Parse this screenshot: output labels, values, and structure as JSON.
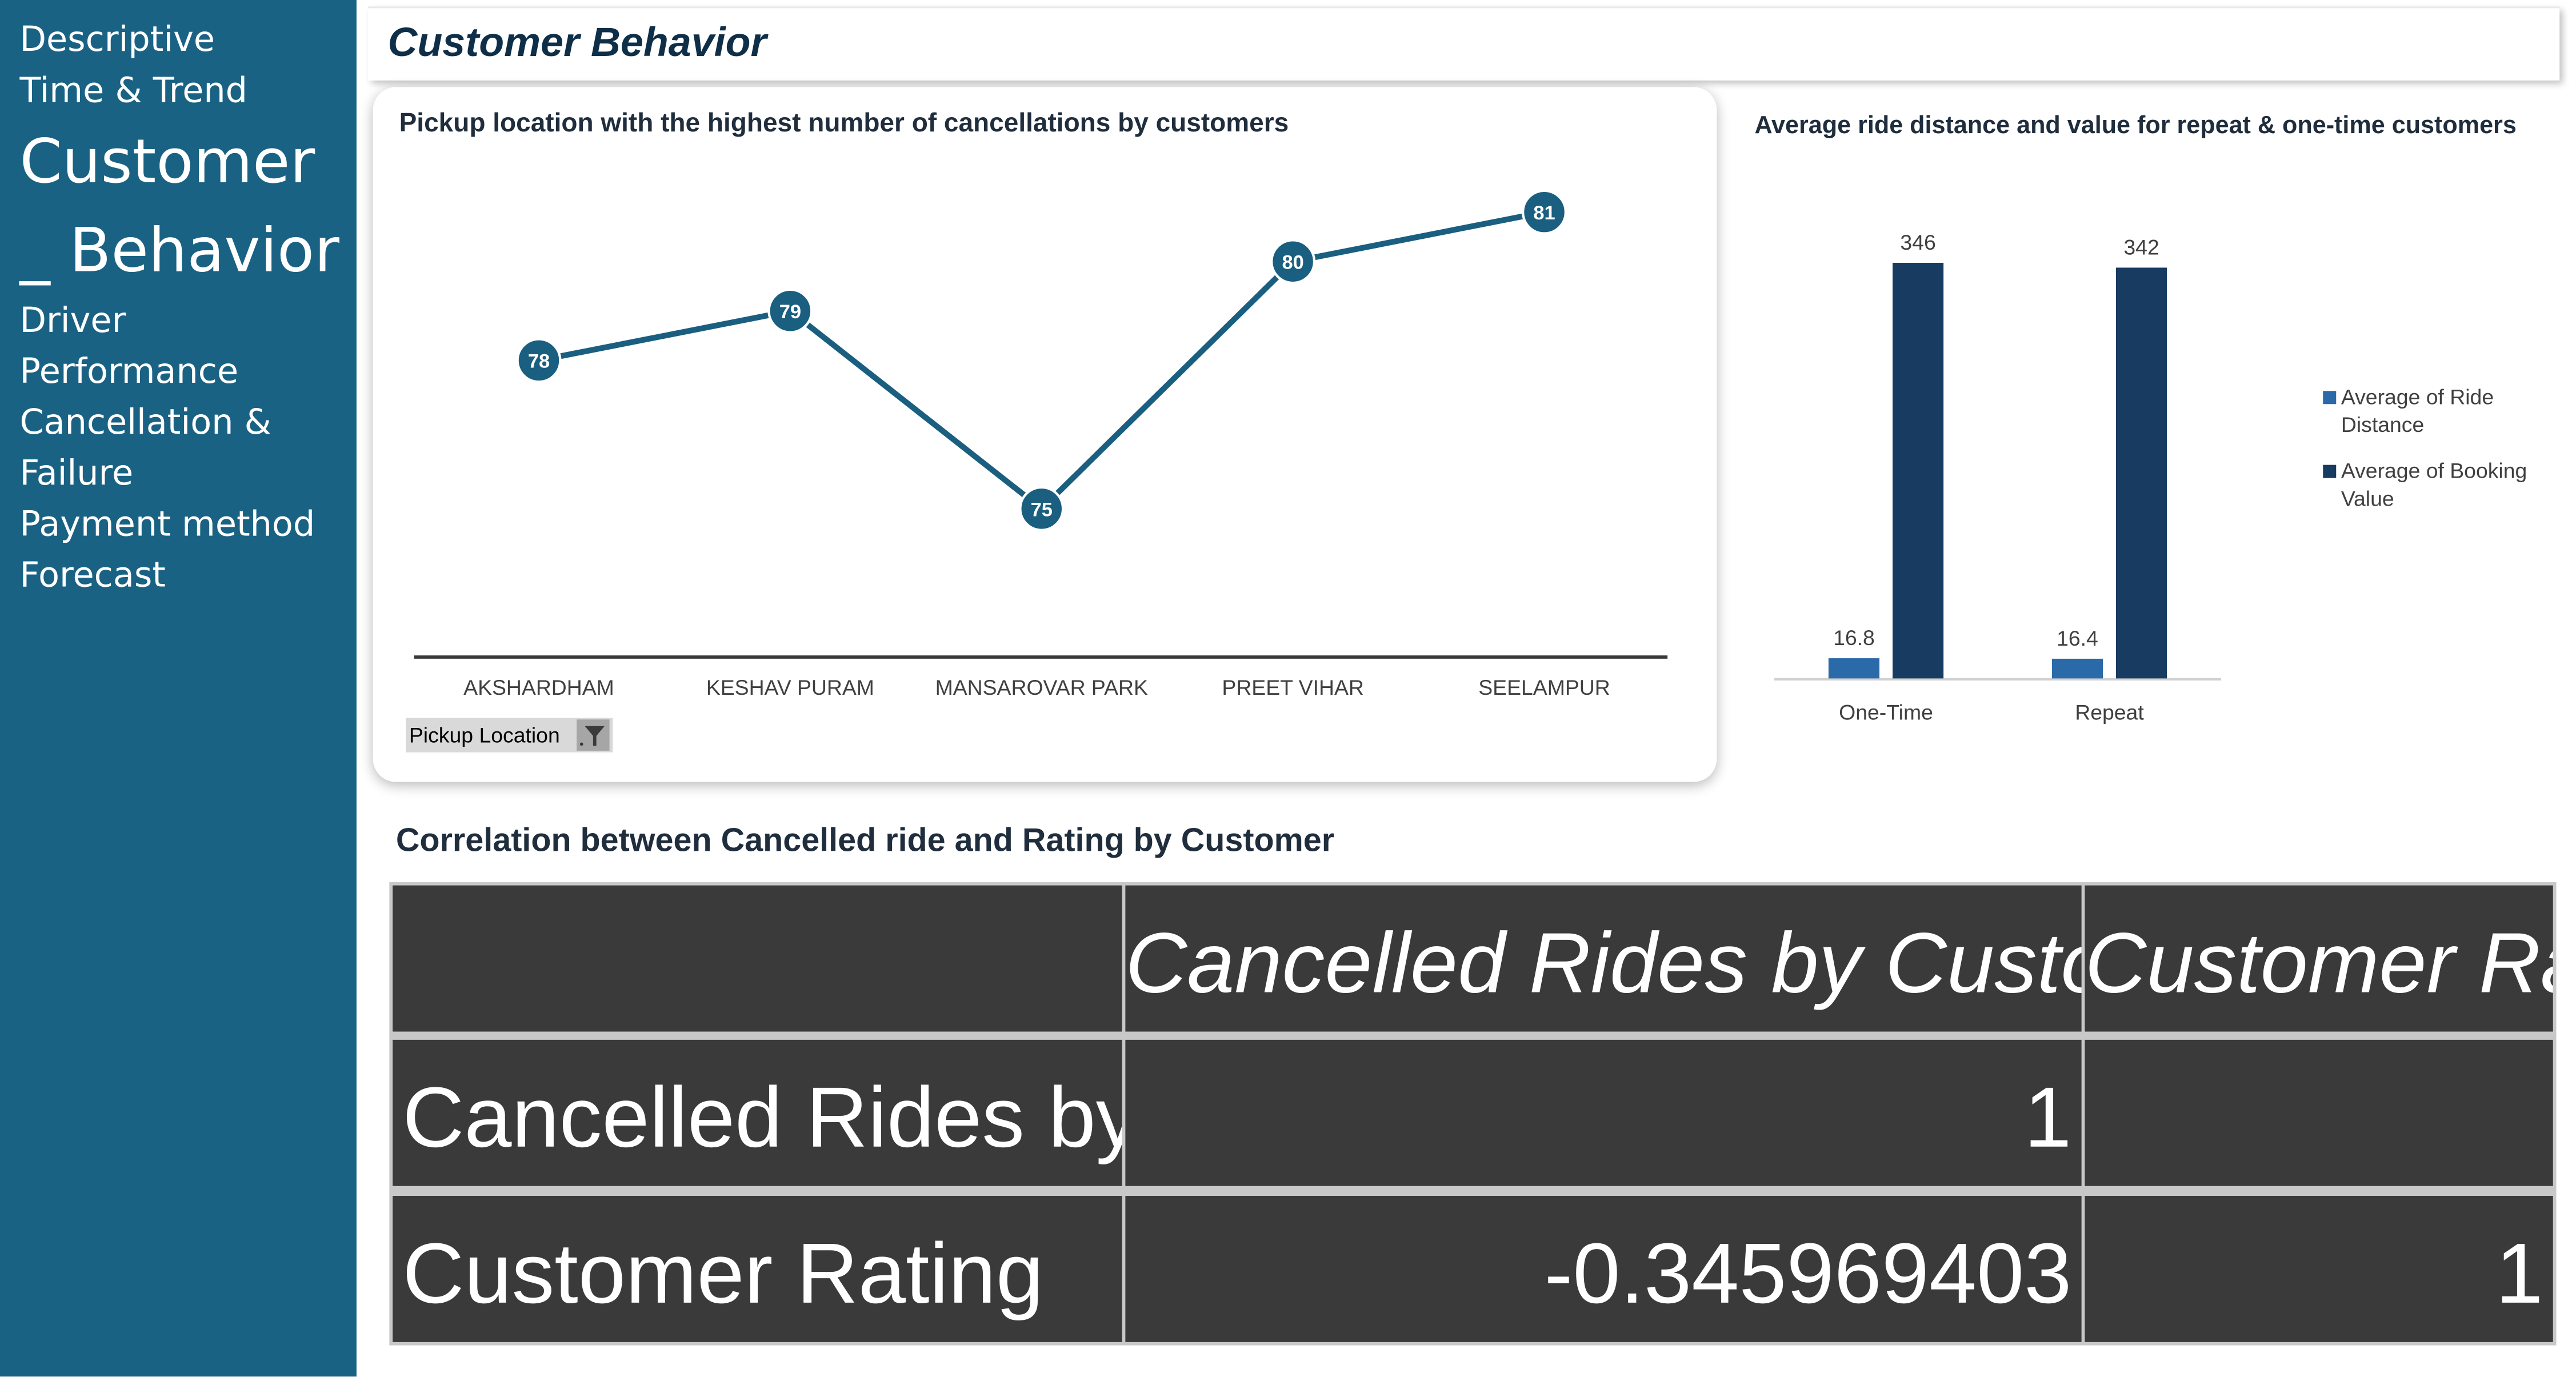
{
  "sidebar": {
    "items": [
      "Descriptive",
      "Time & Trend",
      "Customer",
      "_ Behavior",
      "Driver",
      "Performance",
      "Cancellation &",
      "Failure",
      "Payment method",
      "Forecast"
    ]
  },
  "page": {
    "title": "Customer Behavior"
  },
  "colors": {
    "sidebar": "#1a6284",
    "line": "#1a5e80",
    "dark_bar": "#173b61",
    "light_bar": "#2a6aa8",
    "table_bg": "#3a3a3a"
  },
  "filter": {
    "label": "Pickup  Location",
    "icon": "filter-icon"
  },
  "correlation": {
    "title": "Correlation between Cancelled ride and Rating by Customer",
    "columns": [
      "",
      "Cancelled Rides by Customer",
      "Customer Rating"
    ],
    "rows": [
      {
        "label": "Cancelled Rides by Customer",
        "values": [
          "1",
          ""
        ]
      },
      {
        "label": "Customer Rating",
        "values": [
          "-0.345969403",
          "1"
        ]
      }
    ]
  },
  "chart_data": [
    {
      "type": "line",
      "title": "Pickup location with the highest number of cancellations by customers",
      "categories": [
        "AKSHARDHAM",
        "KESHAV PURAM",
        "MANSAROVAR PARK",
        "PREET VIHAR",
        "SEELAMPUR"
      ],
      "series": [
        {
          "values": [
            78,
            79,
            75,
            80,
            81
          ]
        }
      ],
      "ylim": [
        72,
        82.2
      ],
      "grid": false,
      "data_labels": true
    },
    {
      "type": "bar",
      "title": "Average ride distance and value for repeat & one-time customers",
      "categories": [
        "One-Time",
        "Repeat"
      ],
      "series": [
        {
          "name": "Average of Ride Distance",
          "values": [
            16.8,
            16.4
          ]
        },
        {
          "name": "Average of Booking Value",
          "values": [
            346,
            342
          ]
        }
      ],
      "ylim": [
        0,
        400
      ],
      "legend": "right",
      "data_labels": true
    }
  ]
}
